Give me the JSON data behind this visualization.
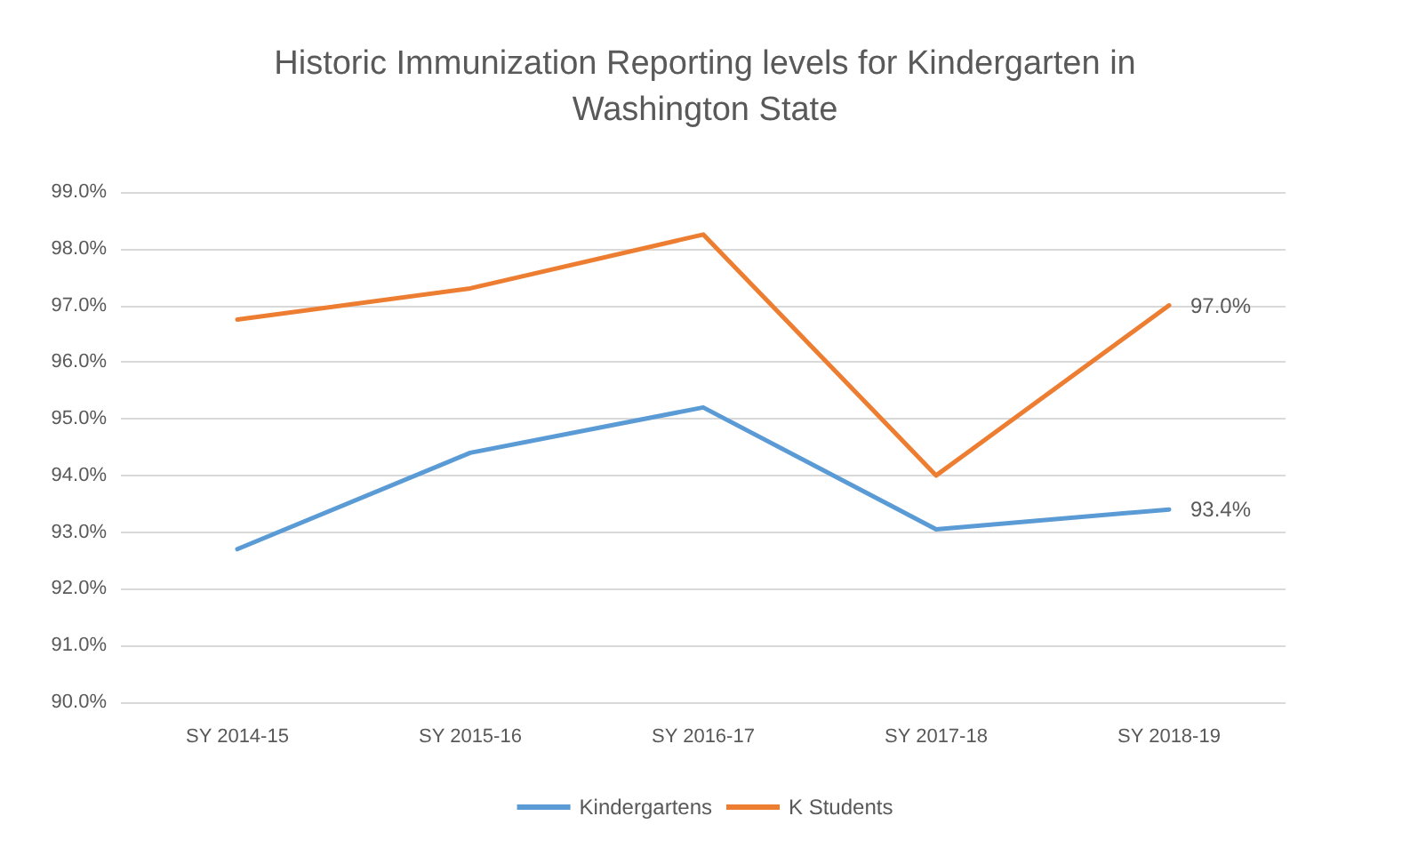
{
  "chart_data": {
    "type": "line",
    "title": "Historic Immunization Reporting levels for Kindergarten in\nWashington State",
    "categories": [
      "SY 2014-15",
      "SY 2015-16",
      "SY 2016-17",
      "SY 2017-18",
      "SY 2018-19"
    ],
    "series": [
      {
        "name": "Kindergartens",
        "color": "#5b9bd5",
        "values": [
          92.7,
          94.4,
          95.2,
          93.05,
          93.4
        ],
        "value_labels": [
          null,
          null,
          null,
          null,
          "93.4%"
        ]
      },
      {
        "name": "K Students",
        "color": "#ed7d31",
        "values": [
          96.75,
          97.3,
          98.25,
          94.0,
          97.0
        ],
        "value_labels": [
          null,
          null,
          null,
          null,
          "97.0%"
        ]
      }
    ],
    "ylim": [
      90,
      99
    ],
    "yticks": [
      {
        "value": 90,
        "label": "90.0%"
      },
      {
        "value": 91,
        "label": "91.0%"
      },
      {
        "value": 92,
        "label": "92.0%"
      },
      {
        "value": 93,
        "label": "93.0%"
      },
      {
        "value": 94,
        "label": "94.0%"
      },
      {
        "value": 95,
        "label": "95.0%"
      },
      {
        "value": 96,
        "label": "96.0%"
      },
      {
        "value": 97,
        "label": "97.0%"
      },
      {
        "value": 98,
        "label": "98.0%"
      },
      {
        "value": 99,
        "label": "99.0%"
      }
    ],
    "grid": "y",
    "legend": "bottom",
    "marker": "none",
    "line_style": "solid"
  }
}
